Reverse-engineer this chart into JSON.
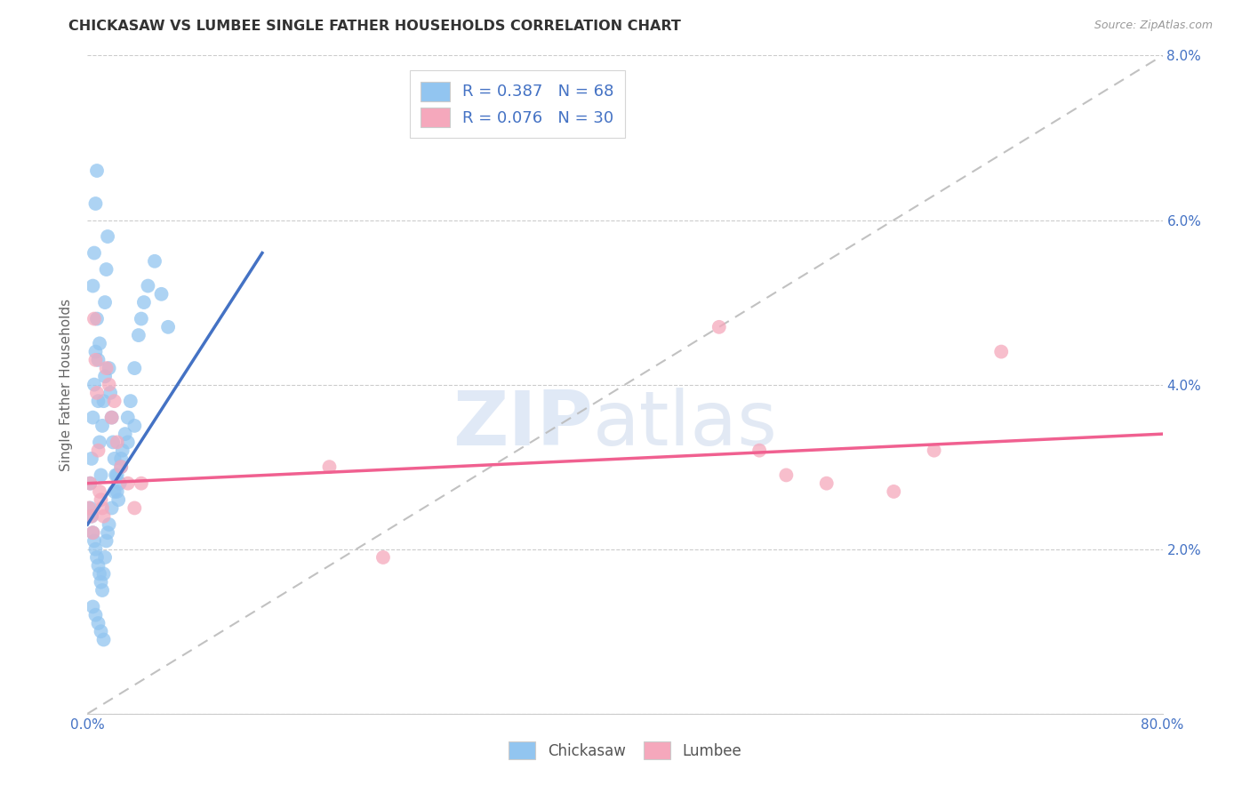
{
  "title": "CHICKASAW VS LUMBEE SINGLE FATHER HOUSEHOLDS CORRELATION CHART",
  "source": "Source: ZipAtlas.com",
  "ylabel": "Single Father Households",
  "xlim": [
    0.0,
    0.8
  ],
  "ylim": [
    0.0,
    0.08
  ],
  "xtick_positions": [
    0.0,
    0.1,
    0.2,
    0.3,
    0.4,
    0.5,
    0.6,
    0.7,
    0.8
  ],
  "xticklabels": [
    "0.0%",
    "",
    "",
    "",
    "",
    "",
    "",
    "",
    "80.0%"
  ],
  "ytick_positions": [
    0.0,
    0.02,
    0.04,
    0.06,
    0.08
  ],
  "yticklabels_right": [
    "",
    "2.0%",
    "4.0%",
    "6.0%",
    "8.0%"
  ],
  "chickasaw_color": "#92C5F0",
  "lumbee_color": "#F5A8BC",
  "chickasaw_line_color": "#4472C4",
  "lumbee_line_color": "#F06090",
  "diagonal_color": "#BBBBBB",
  "watermark_zip": "ZIP",
  "watermark_atlas": "atlas",
  "chickasaw_x": [
    0.002,
    0.003,
    0.004,
    0.005,
    0.006,
    0.007,
    0.008,
    0.009,
    0.01,
    0.011,
    0.012,
    0.013,
    0.004,
    0.005,
    0.006,
    0.007,
    0.008,
    0.009,
    0.013,
    0.014,
    0.015,
    0.016,
    0.017,
    0.018,
    0.019,
    0.02,
    0.021,
    0.022,
    0.023,
    0.024,
    0.025,
    0.026,
    0.028,
    0.03,
    0.032,
    0.035,
    0.038,
    0.04,
    0.042,
    0.045,
    0.05,
    0.055,
    0.06,
    0.002,
    0.003,
    0.004,
    0.005,
    0.006,
    0.007,
    0.008,
    0.009,
    0.01,
    0.011,
    0.012,
    0.013,
    0.014,
    0.015,
    0.016,
    0.018,
    0.02,
    0.022,
    0.025,
    0.03,
    0.035,
    0.004,
    0.006,
    0.008,
    0.01,
    0.012
  ],
  "chickasaw_y": [
    0.028,
    0.031,
    0.036,
    0.04,
    0.044,
    0.048,
    0.038,
    0.033,
    0.029,
    0.035,
    0.038,
    0.041,
    0.052,
    0.056,
    0.062,
    0.066,
    0.043,
    0.045,
    0.05,
    0.054,
    0.058,
    0.042,
    0.039,
    0.036,
    0.033,
    0.031,
    0.029,
    0.027,
    0.026,
    0.028,
    0.03,
    0.032,
    0.034,
    0.036,
    0.038,
    0.042,
    0.046,
    0.048,
    0.05,
    0.052,
    0.055,
    0.051,
    0.047,
    0.025,
    0.024,
    0.022,
    0.021,
    0.02,
    0.019,
    0.018,
    0.017,
    0.016,
    0.015,
    0.017,
    0.019,
    0.021,
    0.022,
    0.023,
    0.025,
    0.027,
    0.029,
    0.031,
    0.033,
    0.035,
    0.013,
    0.012,
    0.011,
    0.01,
    0.009
  ],
  "lumbee_x": [
    0.001,
    0.002,
    0.003,
    0.004,
    0.005,
    0.006,
    0.007,
    0.008,
    0.009,
    0.01,
    0.011,
    0.012,
    0.014,
    0.016,
    0.018,
    0.02,
    0.022,
    0.025,
    0.03,
    0.035,
    0.04,
    0.47,
    0.5,
    0.52,
    0.55,
    0.6,
    0.63,
    0.68,
    0.18,
    0.22
  ],
  "lumbee_y": [
    0.025,
    0.028,
    0.024,
    0.022,
    0.048,
    0.043,
    0.039,
    0.032,
    0.027,
    0.026,
    0.025,
    0.024,
    0.042,
    0.04,
    0.036,
    0.038,
    0.033,
    0.03,
    0.028,
    0.025,
    0.028,
    0.047,
    0.032,
    0.029,
    0.028,
    0.027,
    0.032,
    0.044,
    0.03,
    0.019
  ],
  "chickasaw_regline_x": [
    0.0,
    0.13
  ],
  "chickasaw_regline_y": [
    0.023,
    0.056
  ],
  "lumbee_regline_x": [
    0.0,
    0.8
  ],
  "lumbee_regline_y": [
    0.028,
    0.034
  ]
}
